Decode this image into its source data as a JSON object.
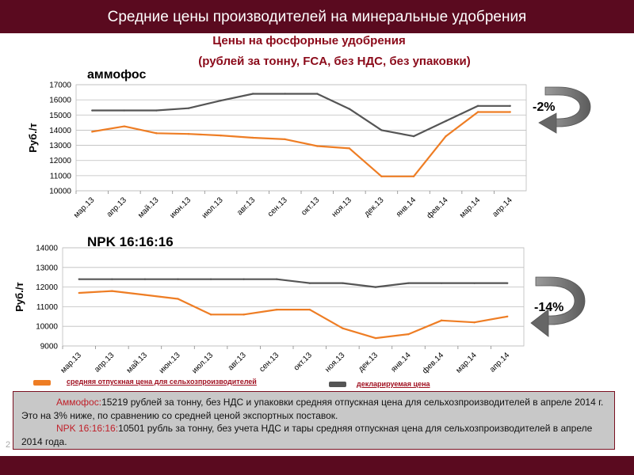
{
  "header": {
    "title": "Средние цены производителей на минеральные удобрения"
  },
  "subtitle": {
    "line1": "Цены на фосфорные удобрения",
    "line2": "(рублей за тонну, FCA, без НДС, без упаковки)"
  },
  "colors": {
    "header_bg": "#5a0a1f",
    "producer_line": "#ee7d24",
    "declared_line": "#555555",
    "subtitle": "#8b0a1a"
  },
  "legend": {
    "producer": "средняя отпускная цена для сельхозпроизводителей",
    "declared": "декларируемая цена"
  },
  "chart_data": [
    {
      "type": "line",
      "title": "аммофос",
      "ylabel": "Руб./т",
      "ylim": [
        10000,
        17000
      ],
      "yticks": [
        "10000",
        "11000",
        "12000",
        "13000",
        "14000",
        "15000",
        "16000",
        "17000"
      ],
      "categories": [
        "мар.13",
        "апр.13",
        "май.13",
        "июн.13",
        "июл.13",
        "авг.13",
        "сен.13",
        "окт.13",
        "ноя.13",
        "дек.13",
        "янв.14",
        "фев.14",
        "мар.14",
        "апр.14"
      ],
      "series": [
        {
          "name": "средняя отпускная цена для сельхозпроизводителей",
          "color": "#ee7d24",
          "values": [
            13900,
            14250,
            13800,
            13750,
            13650,
            13500,
            13400,
            12950,
            12800,
            10950,
            10950,
            13600,
            15200,
            15200
          ]
        },
        {
          "name": "декларируемая цена",
          "color": "#555555",
          "values": [
            15300,
            15300,
            15300,
            15450,
            15950,
            16400,
            16400,
            16400,
            15400,
            14000,
            13600,
            14600,
            15600,
            15600
          ]
        }
      ],
      "change": "-2%"
    },
    {
      "type": "line",
      "title": "NPK 16:16:16",
      "ylabel": "Руб./т",
      "ylim": [
        9000,
        14000
      ],
      "yticks": [
        "9000",
        "10000",
        "11000",
        "12000",
        "13000",
        "14000"
      ],
      "categories": [
        "мар.13",
        "апр.13",
        "май.13",
        "июн.13",
        "июл.13",
        "авг.13",
        "сен.13",
        "окт.13",
        "ноя.13",
        "дек.13",
        "янв.14",
        "фев.14",
        "мар.14",
        "апр.14"
      ],
      "series": [
        {
          "name": "средняя отпускная цена для сельхозпроизводителей",
          "color": "#ee7d24",
          "values": [
            11700,
            11800,
            11600,
            11400,
            10600,
            10600,
            10850,
            10850,
            9900,
            9400,
            9600,
            10300,
            10200,
            10500
          ]
        },
        {
          "name": "декларируемая цена",
          "color": "#555555",
          "values": [
            12400,
            12400,
            12400,
            12400,
            12400,
            12400,
            12400,
            12200,
            12200,
            12000,
            12200,
            12200,
            12200,
            12200
          ]
        }
      ],
      "change": "-14%"
    }
  ],
  "summary": {
    "ammo_name": "Аммофос:",
    "ammo_text": "15219 рублей за тонну, без НДС и упаковки средняя отпускная цена для сельхозпроизводителей в апреле 2014 г. Это на 3% ниже, по сравнению со средней ценой экспортных поставок.",
    "npk_name": "NPK 16:16:16:",
    "npk_text": "10501 рубль за тонну, без учета НДС и тары средняя отпускная цена для сельхозпроизводителей в апреле 2014 года."
  },
  "page_number": "2"
}
